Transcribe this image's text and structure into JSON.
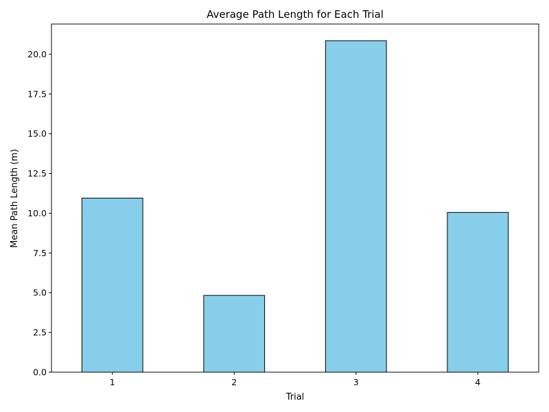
{
  "chart_data": {
    "type": "bar",
    "title": "Average Path Length for Each Trial",
    "xlabel": "Trial",
    "ylabel": "Mean Path Length (m)",
    "categories": [
      "1",
      "2",
      "3",
      "4"
    ],
    "values": [
      10.95,
      4.83,
      20.85,
      10.05
    ],
    "ylim": [
      0,
      21.9
    ],
    "yticks": [
      "0.0",
      "2.5",
      "5.0",
      "7.5",
      "10.0",
      "12.5",
      "15.0",
      "17.5",
      "20.0"
    ],
    "grid": false,
    "legend": "none",
    "bar_color": "#87CEEB",
    "bar_edge_color": "#000000"
  }
}
